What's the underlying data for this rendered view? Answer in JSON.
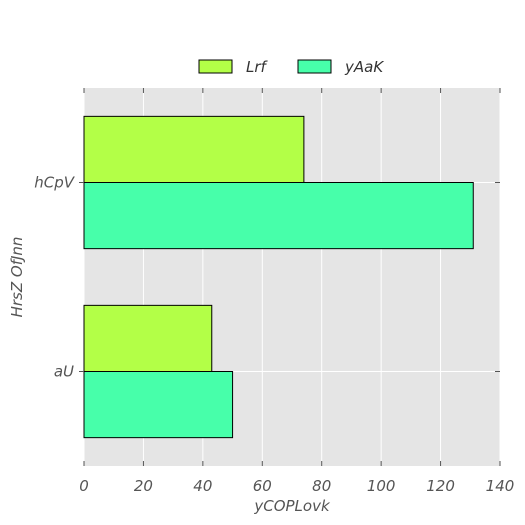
{
  "chart_data": {
    "type": "bar",
    "orientation": "horizontal",
    "categories": [
      "aU",
      "hCpV"
    ],
    "series": [
      {
        "name": "Lrf",
        "values": [
          43,
          74
        ],
        "color": "#b3ff47"
      },
      {
        "name": "yAaK",
        "values": [
          50,
          131
        ],
        "color": "#47ffaa"
      }
    ],
    "xlabel": "yCOPLovk",
    "ylabel": "HrsZ OfJnn",
    "xlim": [
      0,
      140
    ],
    "xticks": [
      0,
      20,
      40,
      60,
      80,
      100,
      120,
      140
    ],
    "grid": true,
    "legend": "top-center",
    "background": "#e5e5e5"
  }
}
